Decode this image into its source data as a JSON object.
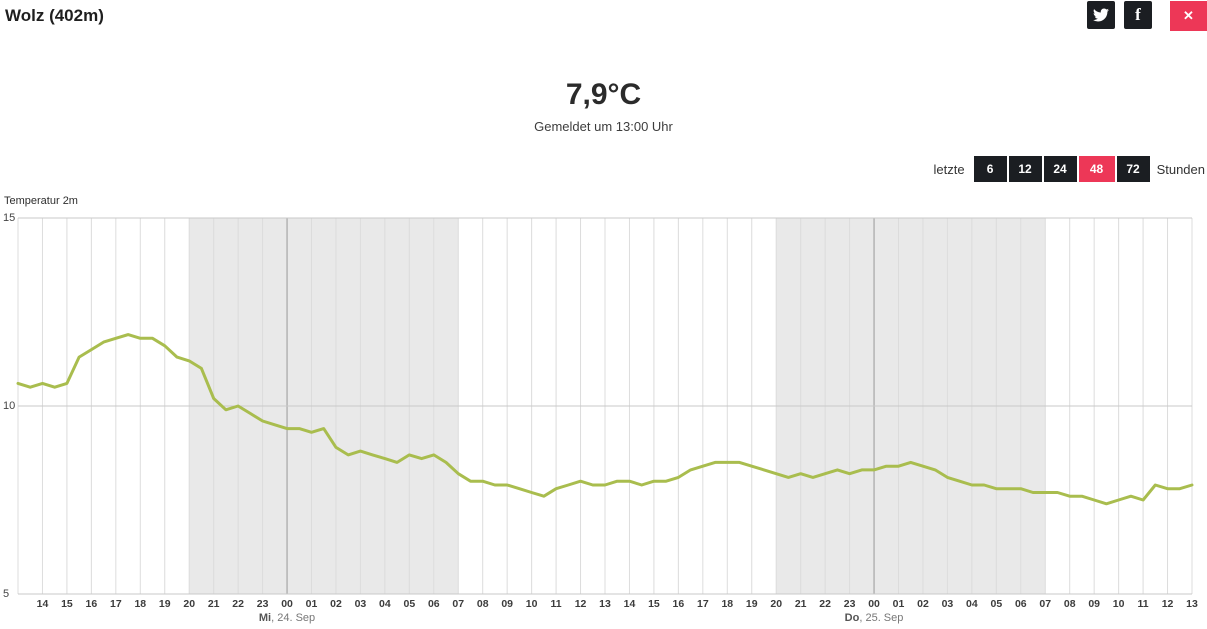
{
  "header": {
    "title": "Wolz (402m)",
    "facebook_glyph": "f",
    "close_glyph": "✕"
  },
  "report": {
    "temperature": "7,9°C",
    "subtitle": "Gemeldet um 13:00 Uhr"
  },
  "range_selector": {
    "prefix": "letzte",
    "suffix": "Stunden",
    "options": [
      {
        "label": "6"
      },
      {
        "label": "12"
      },
      {
        "label": "24"
      },
      {
        "label": "48"
      },
      {
        "label": "72"
      }
    ],
    "selected": "48"
  },
  "colors": {
    "accent": "#ed3757",
    "dark": "#1b1e22"
  },
  "chart_data": {
    "type": "line",
    "title": "Temperatur 2m",
    "ylabel": "Temperatur 2m",
    "ylim": [
      5,
      15
    ],
    "y_ticks": [
      15,
      10,
      5
    ],
    "x_hour_labels": [
      "14",
      "15",
      "16",
      "17",
      "18",
      "19",
      "20",
      "21",
      "22",
      "23",
      "00",
      "01",
      "02",
      "03",
      "04",
      "05",
      "06",
      "07",
      "08",
      "09",
      "10",
      "11",
      "12",
      "13",
      "14",
      "15",
      "16",
      "17",
      "18",
      "19",
      "20",
      "21",
      "22",
      "23",
      "00",
      "01",
      "02",
      "03",
      "04",
      "05",
      "06",
      "07",
      "08",
      "09",
      "10",
      "11",
      "12",
      "13"
    ],
    "date_labels": [
      {
        "bold": "Mi",
        "rest": ", 24. Sep",
        "hour_index": 10
      },
      {
        "bold": "Do",
        "rest": ", 25. Sep",
        "hour_index": 34
      }
    ],
    "night_bands": [
      [
        6,
        17
      ],
      [
        30,
        41
      ]
    ],
    "midnight_indices": [
      10,
      34
    ],
    "series": [
      {
        "name": "Temperatur 2m",
        "start_hour": -1,
        "step_hours": 0.5,
        "values": [
          10.6,
          10.5,
          10.6,
          10.5,
          10.6,
          11.3,
          11.5,
          11.7,
          11.8,
          11.9,
          11.8,
          11.8,
          11.6,
          11.3,
          11.2,
          11.0,
          10.2,
          9.9,
          10.0,
          9.8,
          9.6,
          9.5,
          9.4,
          9.4,
          9.3,
          9.4,
          8.9,
          8.7,
          8.8,
          8.7,
          8.6,
          8.5,
          8.7,
          8.6,
          8.7,
          8.5,
          8.2,
          8.0,
          8.0,
          7.9,
          7.9,
          7.8,
          7.7,
          7.6,
          7.8,
          7.9,
          8.0,
          7.9,
          7.9,
          8.0,
          8.0,
          7.9,
          8.0,
          8.0,
          8.1,
          8.3,
          8.4,
          8.5,
          8.5,
          8.5,
          8.4,
          8.3,
          8.2,
          8.1,
          8.2,
          8.1,
          8.2,
          8.3,
          8.2,
          8.3,
          8.3,
          8.4,
          8.4,
          8.5,
          8.4,
          8.3,
          8.1,
          8.0,
          7.9,
          7.9,
          7.8,
          7.8,
          7.8,
          7.7,
          7.7,
          7.7,
          7.6,
          7.6,
          7.5,
          7.4,
          7.5,
          7.6,
          7.5,
          7.9,
          7.8,
          7.8,
          7.9
        ]
      }
    ],
    "line_color": "#a9bd4e",
    "band_color": "#e9e9e9",
    "grid_color": "#dcdcdc",
    "axis_line_color": "#c9c9c9",
    "midnight_line_color": "#989898"
  }
}
